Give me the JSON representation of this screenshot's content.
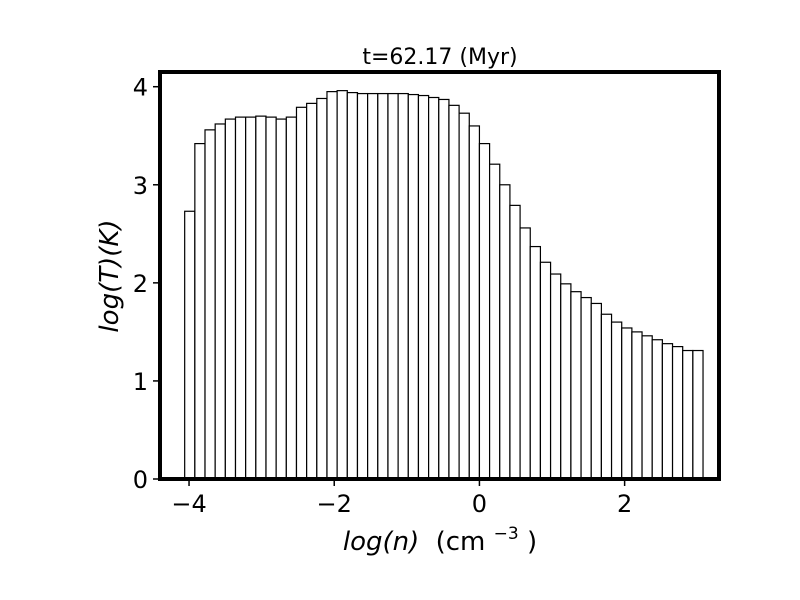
{
  "chart_data": {
    "type": "bar",
    "title": "t=62.17 (Myr)",
    "xlabel": {
      "var": "log(n)",
      "unit_base": "(cm",
      "unit_exp": "−3",
      "unit_close": ")"
    },
    "ylabel": "log(T)(K)",
    "xlim": [
      -4.4,
      3.3
    ],
    "ylim": [
      0,
      4.15
    ],
    "bin_width": 0.14,
    "x_start": -4.06,
    "values": [
      2.73,
      3.42,
      3.56,
      3.62,
      3.67,
      3.69,
      3.69,
      3.7,
      3.69,
      3.67,
      3.69,
      3.79,
      3.83,
      3.88,
      3.95,
      3.96,
      3.94,
      3.93,
      3.93,
      3.93,
      3.93,
      3.93,
      3.92,
      3.91,
      3.89,
      3.87,
      3.81,
      3.73,
      3.6,
      3.42,
      3.21,
      3.0,
      2.79,
      2.56,
      2.37,
      2.21,
      2.09,
      1.99,
      1.91,
      1.85,
      1.79,
      1.68,
      1.6,
      1.54,
      1.5,
      1.46,
      1.42,
      1.38,
      1.35,
      1.31,
      1.31
    ],
    "xticks": [
      -4,
      -2,
      0,
      2
    ],
    "xtick_labels": [
      "−4",
      "−2",
      "0",
      "2"
    ],
    "yticks": [
      0,
      1,
      2,
      3,
      4
    ],
    "ytick_labels": [
      "0",
      "1",
      "2",
      "3",
      "4"
    ],
    "bar_fill": "#ffffff",
    "bar_stroke": "#000000",
    "frame_color": "#000000",
    "grid": false
  }
}
